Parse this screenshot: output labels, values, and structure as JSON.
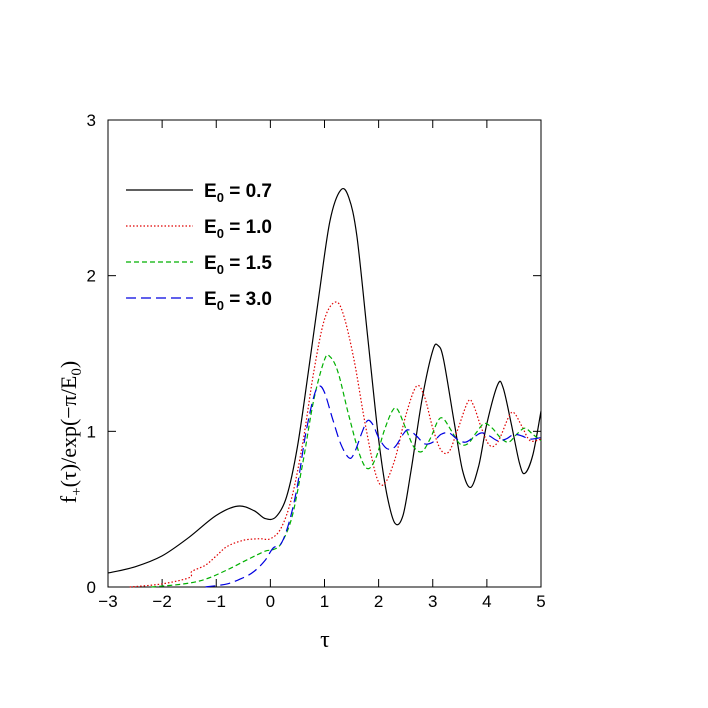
{
  "chart_data": {
    "type": "line",
    "xlabel": "τ",
    "ylabel": {
      "main": "f",
      "sub1": "+",
      "mid": "(τ)/exp(−π/E",
      "sub2": "0",
      "end": ")"
    },
    "xlim": [
      -3,
      5
    ],
    "ylim": [
      0,
      3
    ],
    "xticks": [
      -3,
      -2,
      -1,
      0,
      1,
      2,
      3,
      4,
      5
    ],
    "xtick_labels": [
      "−3",
      "−2",
      "−1",
      "0",
      "1",
      "2",
      "3",
      "4",
      "5"
    ],
    "yticks": [
      0,
      1,
      2,
      3
    ],
    "ytick_labels": [
      "0",
      "1",
      "2",
      "3"
    ],
    "grid": false,
    "legend_position": "top-left",
    "series": [
      {
        "name": "E0 = 0.7",
        "label": {
          "prefix": "E",
          "sub": "0",
          "suffix": " = 0.7"
        },
        "color": "#000000",
        "dash": "solid",
        "points": [
          [
            -3,
            0.09
          ],
          [
            -2.5,
            0.13
          ],
          [
            -2,
            0.2
          ],
          [
            -1.5,
            0.32
          ],
          [
            -1,
            0.46
          ],
          [
            -0.6,
            0.52
          ],
          [
            -0.3,
            0.49
          ],
          [
            -0.1,
            0.44
          ],
          [
            0.1,
            0.45
          ],
          [
            0.3,
            0.58
          ],
          [
            0.5,
            0.9
          ],
          [
            0.7,
            1.38
          ],
          [
            0.9,
            1.88
          ],
          [
            1.1,
            2.35
          ],
          [
            1.3,
            2.55
          ],
          [
            1.45,
            2.5
          ],
          [
            1.6,
            2.25
          ],
          [
            1.8,
            1.6
          ],
          [
            2.0,
            0.95
          ],
          [
            2.15,
            0.6
          ],
          [
            2.3,
            0.41
          ],
          [
            2.45,
            0.46
          ],
          [
            2.6,
            0.75
          ],
          [
            2.8,
            1.2
          ],
          [
            3.0,
            1.52
          ],
          [
            3.1,
            1.55
          ],
          [
            3.2,
            1.46
          ],
          [
            3.4,
            1.05
          ],
          [
            3.55,
            0.75
          ],
          [
            3.7,
            0.64
          ],
          [
            3.85,
            0.78
          ],
          [
            4.0,
            1.05
          ],
          [
            4.2,
            1.3
          ],
          [
            4.3,
            1.28
          ],
          [
            4.45,
            1.05
          ],
          [
            4.6,
            0.8
          ],
          [
            4.7,
            0.73
          ],
          [
            4.85,
            0.85
          ],
          [
            5.0,
            1.13
          ]
        ]
      },
      {
        "name": "E0 = 1.0",
        "label": {
          "prefix": "E",
          "sub": "0",
          "suffix": " = 1.0"
        },
        "color": "#e00000",
        "dash": "dotted",
        "points": [
          [
            -2.6,
            0.0
          ],
          [
            -2,
            0.02
          ],
          [
            -1.5,
            0.06
          ],
          [
            -1.45,
            0.1
          ],
          [
            -1.2,
            0.14
          ],
          [
            -1,
            0.2
          ],
          [
            -0.8,
            0.26
          ],
          [
            -0.5,
            0.3
          ],
          [
            -0.2,
            0.31
          ],
          [
            0.0,
            0.31
          ],
          [
            0.2,
            0.38
          ],
          [
            0.4,
            0.58
          ],
          [
            0.6,
            0.93
          ],
          [
            0.8,
            1.38
          ],
          [
            1.0,
            1.72
          ],
          [
            1.2,
            1.83
          ],
          [
            1.35,
            1.75
          ],
          [
            1.55,
            1.45
          ],
          [
            1.75,
            1.05
          ],
          [
            1.95,
            0.72
          ],
          [
            2.1,
            0.66
          ],
          [
            2.3,
            0.82
          ],
          [
            2.5,
            1.1
          ],
          [
            2.7,
            1.29
          ],
          [
            2.85,
            1.22
          ],
          [
            3.0,
            1.02
          ],
          [
            3.15,
            0.88
          ],
          [
            3.3,
            0.87
          ],
          [
            3.45,
            1.0
          ],
          [
            3.65,
            1.19
          ],
          [
            3.75,
            1.17
          ],
          [
            3.9,
            1.02
          ],
          [
            4.05,
            0.91
          ],
          [
            4.2,
            0.93
          ],
          [
            4.4,
            1.09
          ],
          [
            4.5,
            1.12
          ],
          [
            4.65,
            1.03
          ],
          [
            4.8,
            0.94
          ],
          [
            5.0,
            0.95
          ]
        ]
      },
      {
        "name": "E0 = 1.5",
        "label": {
          "prefix": "E",
          "sub": "0",
          "suffix": " = 1.5"
        },
        "color": "#00b000",
        "dash": "dashed",
        "points": [
          [
            -2.2,
            0.0
          ],
          [
            -1.6,
            0.02
          ],
          [
            -1.2,
            0.05
          ],
          [
            -0.8,
            0.11
          ],
          [
            -0.4,
            0.18
          ],
          [
            -0.1,
            0.23
          ],
          [
            0.05,
            0.24
          ],
          [
            0.2,
            0.28
          ],
          [
            0.4,
            0.45
          ],
          [
            0.6,
            0.8
          ],
          [
            0.8,
            1.2
          ],
          [
            1.0,
            1.46
          ],
          [
            1.1,
            1.48
          ],
          [
            1.25,
            1.38
          ],
          [
            1.45,
            1.1
          ],
          [
            1.65,
            0.85
          ],
          [
            1.8,
            0.76
          ],
          [
            1.95,
            0.83
          ],
          [
            2.1,
            1.0
          ],
          [
            2.25,
            1.13
          ],
          [
            2.35,
            1.14
          ],
          [
            2.5,
            1.02
          ],
          [
            2.65,
            0.9
          ],
          [
            2.8,
            0.87
          ],
          [
            2.95,
            0.95
          ],
          [
            3.1,
            1.07
          ],
          [
            3.2,
            1.08
          ],
          [
            3.35,
            1.0
          ],
          [
            3.5,
            0.92
          ],
          [
            3.65,
            0.92
          ],
          [
            3.8,
            0.99
          ],
          [
            3.95,
            1.05
          ],
          [
            4.1,
            1.02
          ],
          [
            4.25,
            0.96
          ],
          [
            4.4,
            0.93
          ],
          [
            4.55,
            0.98
          ],
          [
            4.7,
            1.02
          ],
          [
            4.85,
            0.98
          ],
          [
            5.0,
            0.94
          ]
        ]
      },
      {
        "name": "E0 = 3.0",
        "label": {
          "prefix": "E",
          "sub": "0",
          "suffix": " = 3.0"
        },
        "color": "#0000e0",
        "dash": "longdash",
        "points": [
          [
            -1.2,
            0.0
          ],
          [
            -0.8,
            0.02
          ],
          [
            -0.5,
            0.06
          ],
          [
            -0.3,
            0.1
          ],
          [
            -0.1,
            0.17
          ],
          [
            0.05,
            0.25
          ],
          [
            0.2,
            0.28
          ],
          [
            0.35,
            0.42
          ],
          [
            0.5,
            0.65
          ],
          [
            0.65,
            0.98
          ],
          [
            0.8,
            1.22
          ],
          [
            0.9,
            1.29
          ],
          [
            1.0,
            1.25
          ],
          [
            1.15,
            1.08
          ],
          [
            1.3,
            0.92
          ],
          [
            1.45,
            0.83
          ],
          [
            1.55,
            0.86
          ],
          [
            1.7,
            1.0
          ],
          [
            1.8,
            1.07
          ],
          [
            1.9,
            1.04
          ],
          [
            2.0,
            0.96
          ],
          [
            2.15,
            0.89
          ],
          [
            2.3,
            0.9
          ],
          [
            2.45,
            0.98
          ],
          [
            2.55,
            1.01
          ],
          [
            2.7,
            0.97
          ],
          [
            2.85,
            0.92
          ],
          [
            3.0,
            0.93
          ],
          [
            3.15,
            0.98
          ],
          [
            3.3,
            0.99
          ],
          [
            3.45,
            0.95
          ],
          [
            3.6,
            0.93
          ],
          [
            3.75,
            0.96
          ],
          [
            3.9,
            0.99
          ],
          [
            4.05,
            0.97
          ],
          [
            4.2,
            0.94
          ],
          [
            4.35,
            0.95
          ],
          [
            4.5,
            0.98
          ],
          [
            4.65,
            0.97
          ],
          [
            4.8,
            0.95
          ],
          [
            5.0,
            0.96
          ]
        ]
      }
    ]
  }
}
